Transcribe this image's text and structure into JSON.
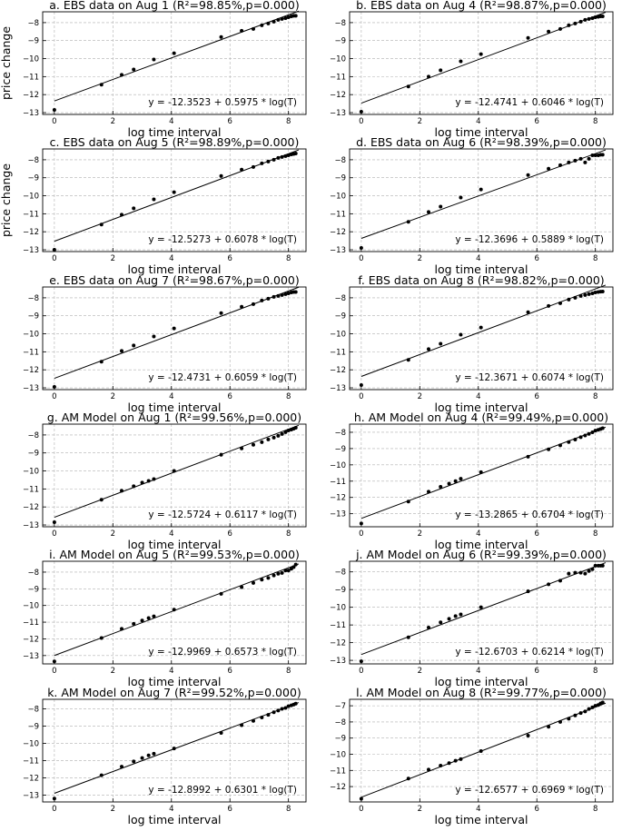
{
  "figure": {
    "xlabel": "log time interval",
    "ylabel": "price change"
  },
  "chart_data": [
    {
      "type": "scatter",
      "title": "a. EBS data on Aug 1 (R²=98.85%,p=0.000)",
      "xlabel": "log time interval",
      "ylabel": "price change",
      "equation": "y = -12.3523 + 0.5975 * log(T)",
      "intercept": -12.3523,
      "slope": 0.5975,
      "xlim": [
        -0.4,
        8.6
      ],
      "ylim": [
        -13.1,
        -7.4
      ],
      "xticks": [
        0,
        2,
        4,
        6,
        8
      ],
      "yticks": [
        -13,
        -12,
        -11,
        -10,
        -9,
        -8
      ],
      "grid": true,
      "points": [
        [
          0,
          -12.85
        ],
        [
          1.61,
          -11.45
        ],
        [
          2.3,
          -10.9
        ],
        [
          2.71,
          -10.6
        ],
        [
          3.4,
          -10.05
        ],
        [
          4.09,
          -9.7
        ],
        [
          5.7,
          -8.8
        ],
        [
          6.4,
          -8.45
        ],
        [
          6.8,
          -8.35
        ],
        [
          7.09,
          -8.15
        ],
        [
          7.31,
          -8.05
        ],
        [
          7.5,
          -7.95
        ],
        [
          7.65,
          -7.85
        ],
        [
          7.78,
          -7.8
        ],
        [
          7.9,
          -7.75
        ],
        [
          8.0,
          -7.7
        ],
        [
          8.1,
          -7.65
        ],
        [
          8.18,
          -7.62
        ],
        [
          8.25,
          -7.62
        ]
      ]
    },
    {
      "type": "scatter",
      "title": "b. EBS data on Aug 4 (R²=98.87%,p=0.000)",
      "xlabel": "log time interval",
      "equation": "y = -12.4741 + 0.6046 * log(T)",
      "intercept": -12.4741,
      "slope": 0.6046,
      "xlim": [
        -0.4,
        8.6
      ],
      "ylim": [
        -13.1,
        -7.4
      ],
      "xticks": [
        0,
        2,
        4,
        6,
        8
      ],
      "yticks": [
        -13,
        -12,
        -11,
        -10,
        -9,
        -8
      ],
      "grid": true,
      "points": [
        [
          0,
          -12.95
        ],
        [
          1.61,
          -11.55
        ],
        [
          2.3,
          -11.0
        ],
        [
          2.71,
          -10.65
        ],
        [
          3.4,
          -10.15
        ],
        [
          4.09,
          -9.75
        ],
        [
          5.7,
          -8.85
        ],
        [
          6.4,
          -8.5
        ],
        [
          6.8,
          -8.35
        ],
        [
          7.09,
          -8.15
        ],
        [
          7.31,
          -8.05
        ],
        [
          7.5,
          -7.95
        ],
        [
          7.65,
          -7.85
        ],
        [
          7.78,
          -7.8
        ],
        [
          7.9,
          -7.75
        ],
        [
          8.0,
          -7.7
        ],
        [
          8.1,
          -7.68
        ],
        [
          8.18,
          -7.65
        ],
        [
          8.25,
          -7.65
        ]
      ]
    },
    {
      "type": "scatter",
      "title": "c. EBS data on Aug 5 (R²=98.89%,p=0.000)",
      "xlabel": "log time interval",
      "ylabel": "price change",
      "equation": "y = -12.5273 + 0.6078 * log(T)",
      "intercept": -12.5273,
      "slope": 0.6078,
      "xlim": [
        -0.4,
        8.6
      ],
      "ylim": [
        -13.1,
        -7.4
      ],
      "xticks": [
        0,
        2,
        4,
        6,
        8
      ],
      "yticks": [
        -13,
        -12,
        -11,
        -10,
        -9,
        -8
      ],
      "grid": true,
      "points": [
        [
          0,
          -13.0
        ],
        [
          1.61,
          -11.6
        ],
        [
          2.3,
          -11.05
        ],
        [
          2.71,
          -10.7
        ],
        [
          3.4,
          -10.2
        ],
        [
          4.09,
          -9.8
        ],
        [
          5.7,
          -8.9
        ],
        [
          6.4,
          -8.55
        ],
        [
          6.8,
          -8.4
        ],
        [
          7.09,
          -8.2
        ],
        [
          7.31,
          -8.1
        ],
        [
          7.5,
          -8.0
        ],
        [
          7.65,
          -7.9
        ],
        [
          7.78,
          -7.85
        ],
        [
          7.9,
          -7.8
        ],
        [
          8.0,
          -7.75
        ],
        [
          8.1,
          -7.7
        ],
        [
          8.18,
          -7.68
        ],
        [
          8.25,
          -7.65
        ]
      ]
    },
    {
      "type": "scatter",
      "title": "d. EBS data on Aug 6 (R²=98.39%,p=0.000)",
      "xlabel": "log time interval",
      "equation": "y = -12.3696 + 0.5889 * log(T)",
      "intercept": -12.3696,
      "slope": 0.5889,
      "xlim": [
        -0.4,
        8.6
      ],
      "ylim": [
        -13.1,
        -7.4
      ],
      "xticks": [
        0,
        2,
        4,
        6,
        8
      ],
      "yticks": [
        -13,
        -12,
        -11,
        -10,
        -9,
        -8
      ],
      "grid": true,
      "points": [
        [
          0,
          -12.9
        ],
        [
          1.61,
          -11.45
        ],
        [
          2.3,
          -10.9
        ],
        [
          2.71,
          -10.6
        ],
        [
          3.4,
          -10.1
        ],
        [
          4.09,
          -9.65
        ],
        [
          5.7,
          -8.85
        ],
        [
          6.4,
          -8.5
        ],
        [
          6.8,
          -8.3
        ],
        [
          7.09,
          -8.15
        ],
        [
          7.31,
          -8.05
        ],
        [
          7.5,
          -7.95
        ],
        [
          7.65,
          -8.15
        ],
        [
          7.78,
          -7.95
        ],
        [
          7.9,
          -7.75
        ],
        [
          8.0,
          -7.75
        ],
        [
          8.1,
          -7.75
        ],
        [
          8.18,
          -7.72
        ],
        [
          8.25,
          -7.72
        ]
      ]
    },
    {
      "type": "scatter",
      "title": "e. EBS data on Aug 7 (R²=98.67%,p=0.000)",
      "xlabel": "log time interval",
      "ylabel": "",
      "equation": "y = -12.4731 + 0.6059 * log(T)",
      "intercept": -12.4731,
      "slope": 0.6059,
      "xlim": [
        -0.4,
        8.6
      ],
      "ylim": [
        -13.1,
        -7.4
      ],
      "xticks": [
        0,
        2,
        4,
        6,
        8
      ],
      "yticks": [
        -13,
        -12,
        -11,
        -10,
        -9,
        -8
      ],
      "grid": true,
      "points": [
        [
          0,
          -12.95
        ],
        [
          1.61,
          -11.55
        ],
        [
          2.3,
          -10.95
        ],
        [
          2.71,
          -10.65
        ],
        [
          3.4,
          -10.15
        ],
        [
          4.09,
          -9.7
        ],
        [
          5.7,
          -8.85
        ],
        [
          6.4,
          -8.5
        ],
        [
          6.8,
          -8.35
        ],
        [
          7.09,
          -8.15
        ],
        [
          7.31,
          -8.05
        ],
        [
          7.5,
          -7.95
        ],
        [
          7.65,
          -7.9
        ],
        [
          7.78,
          -7.85
        ],
        [
          7.9,
          -7.8
        ],
        [
          8.0,
          -7.75
        ],
        [
          8.1,
          -7.7
        ],
        [
          8.18,
          -7.68
        ],
        [
          8.25,
          -7.68
        ]
      ]
    },
    {
      "type": "scatter",
      "title": "f. EBS data on Aug 8 (R²=98.82%,p=0.000)",
      "xlabel": "log time interval",
      "equation": "y = -12.3671 + 0.6074 * log(T)",
      "intercept": -12.3671,
      "slope": 0.6074,
      "xlim": [
        -0.4,
        8.6
      ],
      "ylim": [
        -13.1,
        -7.4
      ],
      "xticks": [
        0,
        2,
        4,
        6,
        8
      ],
      "yticks": [
        -13,
        -12,
        -11,
        -10,
        -9,
        -8
      ],
      "grid": true,
      "points": [
        [
          0,
          -12.85
        ],
        [
          1.61,
          -11.45
        ],
        [
          2.3,
          -10.85
        ],
        [
          2.71,
          -10.55
        ],
        [
          3.4,
          -10.05
        ],
        [
          4.09,
          -9.65
        ],
        [
          5.7,
          -8.8
        ],
        [
          6.4,
          -8.45
        ],
        [
          6.8,
          -8.3
        ],
        [
          7.09,
          -8.1
        ],
        [
          7.31,
          -8.0
        ],
        [
          7.5,
          -7.9
        ],
        [
          7.65,
          -7.85
        ],
        [
          7.78,
          -7.8
        ],
        [
          7.9,
          -7.75
        ],
        [
          8.0,
          -7.7
        ],
        [
          8.1,
          -7.68
        ],
        [
          8.18,
          -7.66
        ],
        [
          8.25,
          -7.65
        ]
      ]
    },
    {
      "type": "scatter",
      "title": "g. AM Model on Aug 1 (R²=99.56%,p=0.000)",
      "xlabel": "log time interval",
      "equation": "y = -12.5724 + 0.6117 * log(T)",
      "intercept": -12.5724,
      "slope": 0.6117,
      "xlim": [
        -0.4,
        8.6
      ],
      "ylim": [
        -13.1,
        -7.4
      ],
      "xticks": [
        0,
        2,
        4,
        6,
        8
      ],
      "yticks": [
        -13,
        -12,
        -11,
        -10,
        -9,
        -8
      ],
      "grid": true,
      "points": [
        [
          0,
          -12.85
        ],
        [
          1.61,
          -11.6
        ],
        [
          2.3,
          -11.1
        ],
        [
          2.71,
          -10.85
        ],
        [
          3.0,
          -10.65
        ],
        [
          3.22,
          -10.55
        ],
        [
          3.4,
          -10.45
        ],
        [
          4.09,
          -10.0
        ],
        [
          5.7,
          -9.1
        ],
        [
          6.4,
          -8.75
        ],
        [
          6.8,
          -8.55
        ],
        [
          7.09,
          -8.4
        ],
        [
          7.31,
          -8.25
        ],
        [
          7.5,
          -8.15
        ],
        [
          7.65,
          -8.05
        ],
        [
          7.78,
          -7.95
        ],
        [
          7.9,
          -7.85
        ],
        [
          8.0,
          -7.75
        ],
        [
          8.1,
          -7.7
        ],
        [
          8.18,
          -7.65
        ],
        [
          8.25,
          -7.6
        ]
      ]
    },
    {
      "type": "scatter",
      "title": "h. AM Model on Aug 4 (R²=99.49%,p=0.000)",
      "xlabel": "log time interval",
      "equation": "y = -13.2865 + 0.6704 * log(T)",
      "intercept": -13.2865,
      "slope": 0.6704,
      "xlim": [
        -0.4,
        8.6
      ],
      "ylim": [
        -13.8,
        -7.5
      ],
      "xticks": [
        0,
        2,
        4,
        6,
        8
      ],
      "yticks": [
        -13,
        -12,
        -11,
        -10,
        -9,
        -8
      ],
      "grid": true,
      "points": [
        [
          0,
          -13.6
        ],
        [
          1.61,
          -12.25
        ],
        [
          2.3,
          -11.65
        ],
        [
          2.71,
          -11.35
        ],
        [
          3.0,
          -11.15
        ],
        [
          3.22,
          -11.0
        ],
        [
          3.4,
          -10.85
        ],
        [
          4.09,
          -10.45
        ],
        [
          5.7,
          -9.5
        ],
        [
          6.4,
          -9.05
        ],
        [
          6.8,
          -8.8
        ],
        [
          7.09,
          -8.6
        ],
        [
          7.31,
          -8.45
        ],
        [
          7.5,
          -8.3
        ],
        [
          7.65,
          -8.2
        ],
        [
          7.78,
          -8.1
        ],
        [
          7.9,
          -8.0
        ],
        [
          8.0,
          -7.9
        ],
        [
          8.1,
          -7.85
        ],
        [
          8.18,
          -7.8
        ],
        [
          8.25,
          -7.75
        ]
      ]
    },
    {
      "type": "scatter",
      "title": "i. AM Model on Aug 5 (R²=99.53%,p=0.000)",
      "xlabel": "log time interval",
      "equation": "y = -12.9969 + 0.6573 * log(T)",
      "intercept": -12.9969,
      "slope": 0.6573,
      "xlim": [
        -0.4,
        8.6
      ],
      "ylim": [
        -13.5,
        -7.35
      ],
      "xticks": [
        0,
        2,
        4,
        6,
        8
      ],
      "yticks": [
        -13,
        -12,
        -11,
        -10,
        -9,
        -8
      ],
      "grid": true,
      "points": [
        [
          0,
          -13.35
        ],
        [
          1.61,
          -11.95
        ],
        [
          2.3,
          -11.4
        ],
        [
          2.71,
          -11.1
        ],
        [
          3.0,
          -10.9
        ],
        [
          3.22,
          -10.75
        ],
        [
          3.4,
          -10.65
        ],
        [
          4.09,
          -10.25
        ],
        [
          5.7,
          -9.3
        ],
        [
          6.4,
          -8.9
        ],
        [
          6.8,
          -8.65
        ],
        [
          7.09,
          -8.45
        ],
        [
          7.31,
          -8.35
        ],
        [
          7.5,
          -8.2
        ],
        [
          7.65,
          -8.1
        ],
        [
          7.78,
          -8.05
        ],
        [
          7.9,
          -7.9
        ],
        [
          8.0,
          -7.9
        ],
        [
          8.1,
          -7.8
        ],
        [
          8.18,
          -7.7
        ],
        [
          8.25,
          -7.55
        ]
      ]
    },
    {
      "type": "scatter",
      "title": "j. AM Model on Aug 6 (R²=99.39%,p=0.000)",
      "xlabel": "log time interval",
      "equation": "y = -12.6703 + 0.6214 * log(T)",
      "intercept": -12.6703,
      "slope": 0.6214,
      "xlim": [
        -0.4,
        8.6
      ],
      "ylim": [
        -13.2,
        -7.4
      ],
      "xticks": [
        0,
        2,
        4,
        6,
        8
      ],
      "yticks": [
        -13,
        -12,
        -11,
        -10,
        -9,
        -8
      ],
      "grid": true,
      "points": [
        [
          0,
          -13.05
        ],
        [
          1.61,
          -11.7
        ],
        [
          2.3,
          -11.15
        ],
        [
          2.71,
          -10.85
        ],
        [
          3.0,
          -10.65
        ],
        [
          3.22,
          -10.5
        ],
        [
          3.4,
          -10.4
        ],
        [
          4.09,
          -10.0
        ],
        [
          5.7,
          -9.1
        ],
        [
          6.4,
          -8.7
        ],
        [
          6.8,
          -8.5
        ],
        [
          7.09,
          -8.1
        ],
        [
          7.31,
          -8.05
        ],
        [
          7.5,
          -8.05
        ],
        [
          7.65,
          -8.1
        ],
        [
          7.78,
          -7.95
        ],
        [
          7.9,
          -7.85
        ],
        [
          8.0,
          -7.65
        ],
        [
          8.1,
          -7.65
        ],
        [
          8.18,
          -7.65
        ],
        [
          8.25,
          -7.65
        ]
      ]
    },
    {
      "type": "scatter",
      "title": "k. AM Model on Aug 7 (R²=99.52%,p=0.000)",
      "xlabel": "log time interval",
      "equation": "y = -12.8992 + 0.6301 * log(T)",
      "intercept": -12.8992,
      "slope": 0.6301,
      "xlim": [
        -0.4,
        8.6
      ],
      "ylim": [
        -13.4,
        -7.45
      ],
      "xticks": [
        0,
        2,
        4,
        6,
        8
      ],
      "yticks": [
        -13,
        -12,
        -11,
        -10,
        -9,
        -8
      ],
      "grid": true,
      "points": [
        [
          0,
          -13.2
        ],
        [
          1.61,
          -11.85
        ],
        [
          2.3,
          -11.35
        ],
        [
          2.71,
          -11.05
        ],
        [
          3.0,
          -10.85
        ],
        [
          3.22,
          -10.7
        ],
        [
          3.4,
          -10.6
        ],
        [
          4.09,
          -10.3
        ],
        [
          5.7,
          -9.4
        ],
        [
          6.4,
          -8.95
        ],
        [
          6.8,
          -8.7
        ],
        [
          7.09,
          -8.5
        ],
        [
          7.31,
          -8.35
        ],
        [
          7.5,
          -8.2
        ],
        [
          7.65,
          -8.1
        ],
        [
          7.78,
          -8.0
        ],
        [
          7.9,
          -7.95
        ],
        [
          8.0,
          -7.85
        ],
        [
          8.1,
          -7.8
        ],
        [
          8.18,
          -7.75
        ],
        [
          8.25,
          -7.7
        ]
      ]
    },
    {
      "type": "scatter",
      "title": "l. AM Model on Aug 8 (R²=99.77%,p=0.000)",
      "xlabel": "log time interval",
      "equation": "y = -12.6577 + 0.6969 * log(T)",
      "intercept": -12.6577,
      "slope": 0.6969,
      "xlim": [
        -0.4,
        8.6
      ],
      "ylim": [
        -12.95,
        -6.6
      ],
      "xticks": [
        0,
        2,
        4,
        6,
        8
      ],
      "yticks": [
        -12,
        -11,
        -10,
        -9,
        -8,
        -7
      ],
      "grid": true,
      "points": [
        [
          0,
          -12.75
        ],
        [
          1.61,
          -11.5
        ],
        [
          2.3,
          -10.95
        ],
        [
          2.71,
          -10.7
        ],
        [
          3.0,
          -10.55
        ],
        [
          3.22,
          -10.4
        ],
        [
          3.4,
          -10.3
        ],
        [
          4.09,
          -9.8
        ],
        [
          5.7,
          -8.85
        ],
        [
          6.4,
          -8.3
        ],
        [
          6.8,
          -8.0
        ],
        [
          7.09,
          -7.8
        ],
        [
          7.31,
          -7.6
        ],
        [
          7.5,
          -7.45
        ],
        [
          7.65,
          -7.35
        ],
        [
          7.78,
          -7.2
        ],
        [
          7.9,
          -7.1
        ],
        [
          8.0,
          -7.0
        ],
        [
          8.1,
          -6.95
        ],
        [
          8.18,
          -6.85
        ],
        [
          8.25,
          -6.8
        ]
      ]
    }
  ]
}
